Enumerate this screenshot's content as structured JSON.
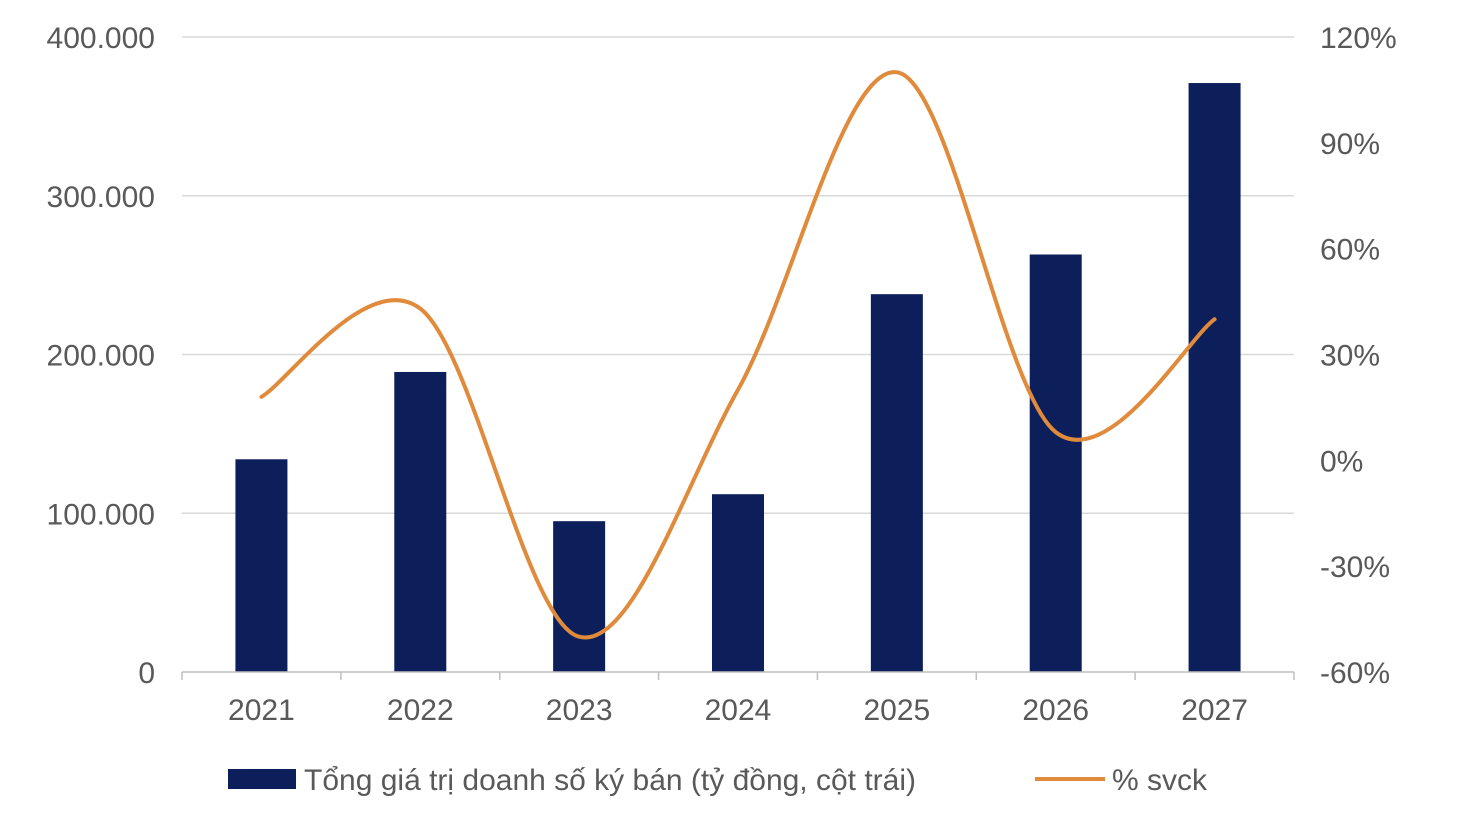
{
  "chart_data": {
    "type": "bar",
    "categories": [
      "2021",
      "2022",
      "2023",
      "2024",
      "2025",
      "2026",
      "2027"
    ],
    "series": [
      {
        "name": "Tổng giá trị doanh số ký bán (tỷ đồng, cột trái)",
        "type": "bar",
        "axis": "left",
        "color": "#0c1f5a",
        "values": [
          134000,
          189000,
          95000,
          112000,
          238000,
          263000,
          371000
        ]
      },
      {
        "name": "% svck",
        "type": "line",
        "axis": "right",
        "color": "#e08a3c",
        "values": [
          18,
          43,
          -50,
          20,
          110,
          8,
          40
        ]
      }
    ],
    "y_left": {
      "ticks": [
        "0",
        "100.000",
        "200.000",
        "300.000",
        "400.000"
      ],
      "ylim": [
        0,
        400000
      ]
    },
    "y_right": {
      "ticks": [
        "-60%",
        "-30%",
        "0%",
        "30%",
        "60%",
        "90%",
        "120%"
      ],
      "ylim": [
        -60,
        120
      ]
    },
    "grid": true,
    "legend_position": "bottom"
  }
}
